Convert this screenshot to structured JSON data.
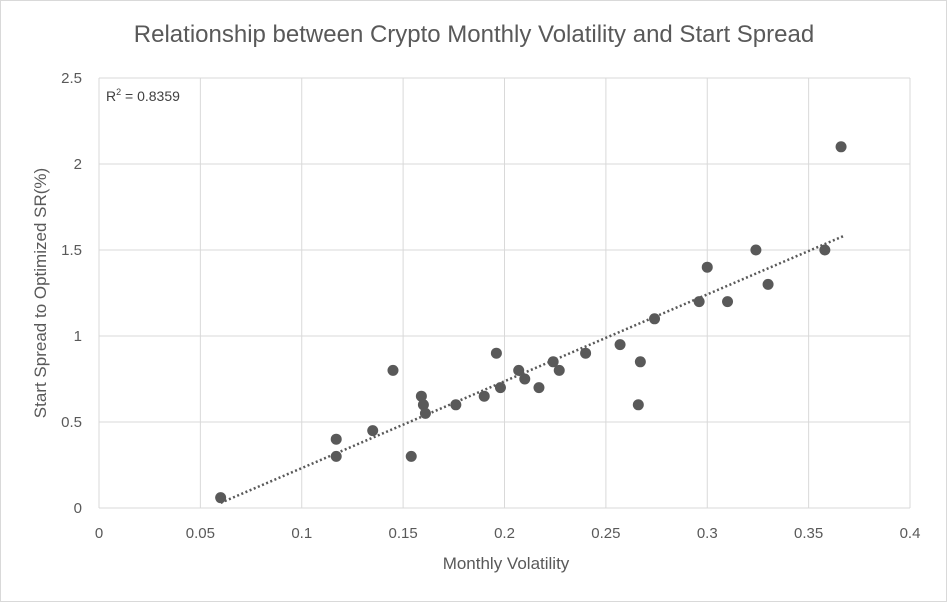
{
  "chart_data": {
    "type": "scatter",
    "title": "Relationship between Crypto Monthly Volatility and Start Spread",
    "xlabel": "Monthly Volatility",
    "ylabel": "Start Spread to Optimized SR(%)",
    "xlim": [
      0,
      0.4
    ],
    "ylim": [
      0,
      2.5
    ],
    "x_ticks": [
      "0",
      "0.05",
      "0.1",
      "0.15",
      "0.2",
      "0.25",
      "0.3",
      "0.35",
      "0.4"
    ],
    "y_ticks": [
      "0",
      "0.5",
      "1",
      "1.5",
      "2",
      "2.5"
    ],
    "grid": true,
    "annotation": {
      "label": "R",
      "sup": "2",
      "value": " = 0.8359"
    },
    "trendline": {
      "type": "linear",
      "style": "dotted",
      "x_start": 0.06,
      "y_start": 0.03,
      "x_end": 0.367,
      "y_end": 1.58
    },
    "marker_color": "#595959",
    "trend_color": "#595959",
    "grid_color": "#d9d9d9",
    "points": [
      {
        "x": 0.06,
        "y": 0.06
      },
      {
        "x": 0.117,
        "y": 0.4
      },
      {
        "x": 0.117,
        "y": 0.3
      },
      {
        "x": 0.135,
        "y": 0.45
      },
      {
        "x": 0.145,
        "y": 0.8
      },
      {
        "x": 0.154,
        "y": 0.3
      },
      {
        "x": 0.159,
        "y": 0.65
      },
      {
        "x": 0.16,
        "y": 0.6
      },
      {
        "x": 0.161,
        "y": 0.55
      },
      {
        "x": 0.176,
        "y": 0.6
      },
      {
        "x": 0.19,
        "y": 0.65
      },
      {
        "x": 0.196,
        "y": 0.9
      },
      {
        "x": 0.198,
        "y": 0.7
      },
      {
        "x": 0.207,
        "y": 0.8
      },
      {
        "x": 0.21,
        "y": 0.75
      },
      {
        "x": 0.217,
        "y": 0.7
      },
      {
        "x": 0.224,
        "y": 0.85
      },
      {
        "x": 0.227,
        "y": 0.8
      },
      {
        "x": 0.24,
        "y": 0.9
      },
      {
        "x": 0.257,
        "y": 0.95
      },
      {
        "x": 0.266,
        "y": 0.6
      },
      {
        "x": 0.267,
        "y": 0.85
      },
      {
        "x": 0.274,
        "y": 1.1
      },
      {
        "x": 0.296,
        "y": 1.2
      },
      {
        "x": 0.3,
        "y": 1.4
      },
      {
        "x": 0.31,
        "y": 1.2
      },
      {
        "x": 0.324,
        "y": 1.5
      },
      {
        "x": 0.33,
        "y": 1.3
      },
      {
        "x": 0.358,
        "y": 1.5
      },
      {
        "x": 0.366,
        "y": 2.1
      }
    ]
  }
}
